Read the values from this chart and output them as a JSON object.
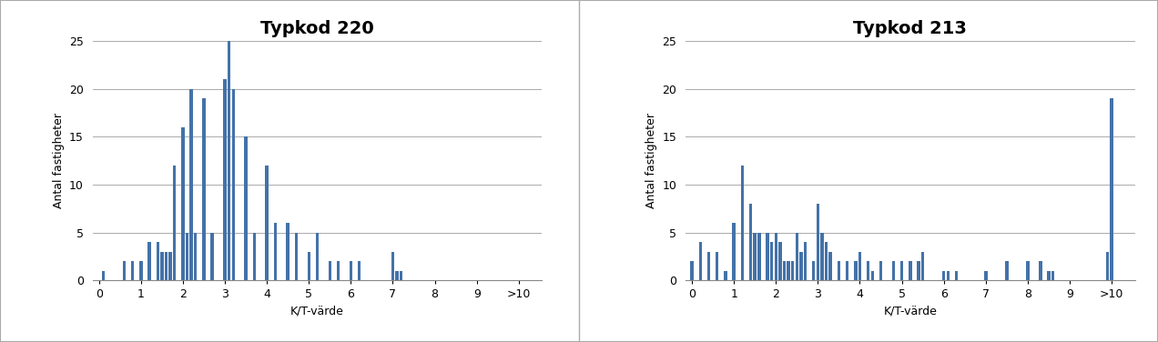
{
  "chart1": {
    "title": "Typkod 220",
    "xlabel": "K/T-värde",
    "ylabel": "Antal fastigheter",
    "ylim": [
      0,
      25
    ],
    "yticks": [
      0,
      5,
      10,
      15,
      20,
      25
    ],
    "bar_color": "#4472A8",
    "values": [
      0,
      1,
      0,
      0,
      0,
      0,
      2,
      0,
      2,
      0,
      2,
      0,
      4,
      0,
      4,
      3,
      3,
      3,
      12,
      0,
      16,
      5,
      20,
      5,
      0,
      19,
      0,
      5,
      0,
      0,
      21,
      25,
      20,
      0,
      0,
      15,
      0,
      5,
      0,
      0,
      12,
      0,
      6,
      0,
      0,
      6,
      0,
      5,
      0,
      0,
      3,
      0,
      5,
      0,
      0,
      2,
      0,
      2,
      0,
      0,
      2,
      0,
      2,
      0,
      0,
      0,
      0,
      0,
      0,
      0,
      3,
      1,
      1,
      0,
      0,
      0,
      0,
      0,
      0,
      0,
      0,
      0,
      0,
      0,
      0,
      0,
      0,
      0,
      0,
      0,
      0,
      0,
      0,
      0,
      0,
      0,
      0,
      0,
      0,
      0,
      0
    ],
    "xlim": [
      -0.15,
      10.55
    ],
    "xtick_positions": [
      0,
      1,
      2,
      3,
      4,
      5,
      6,
      7,
      8,
      9,
      10
    ],
    "xtick_labels": [
      "0",
      "1",
      "2",
      "3",
      "4",
      "5",
      "6",
      "7",
      "8",
      "9",
      ">10"
    ]
  },
  "chart2": {
    "title": "Typkod 213",
    "xlabel": "K/T-värde",
    "ylabel": "Antal fastigheter",
    "ylim": [
      0,
      25
    ],
    "yticks": [
      0,
      5,
      10,
      15,
      20,
      25
    ],
    "bar_color": "#4472A8",
    "values": [
      2,
      0,
      4,
      0,
      3,
      0,
      3,
      0,
      1,
      0,
      6,
      0,
      12,
      0,
      8,
      5,
      5,
      0,
      5,
      4,
      5,
      4,
      2,
      2,
      2,
      5,
      3,
      4,
      0,
      2,
      8,
      5,
      4,
      3,
      0,
      2,
      0,
      2,
      0,
      2,
      3,
      0,
      2,
      1,
      0,
      2,
      0,
      0,
      2,
      0,
      2,
      0,
      2,
      0,
      2,
      3,
      0,
      0,
      0,
      0,
      1,
      1,
      0,
      1,
      0,
      0,
      0,
      0,
      0,
      0,
      1,
      0,
      0,
      0,
      0,
      2,
      0,
      0,
      0,
      0,
      2,
      0,
      0,
      2,
      0,
      1,
      1,
      0,
      0,
      0,
      0,
      0,
      0,
      0,
      0,
      0,
      0,
      0,
      0,
      3,
      19
    ],
    "xlim": [
      -0.15,
      10.55
    ],
    "xtick_positions": [
      0,
      1,
      2,
      3,
      4,
      5,
      6,
      7,
      8,
      9,
      10
    ],
    "xtick_labels": [
      "0",
      "1",
      "2",
      "3",
      "4",
      "5",
      "6",
      "7",
      "8",
      "9",
      ">10"
    ]
  },
  "fig_facecolor": "#FFFFFF",
  "border_color": "#AAAAAA",
  "grid_color": "#AAAAAA",
  "title_fontsize": 14,
  "label_fontsize": 9,
  "tick_fontsize": 9
}
